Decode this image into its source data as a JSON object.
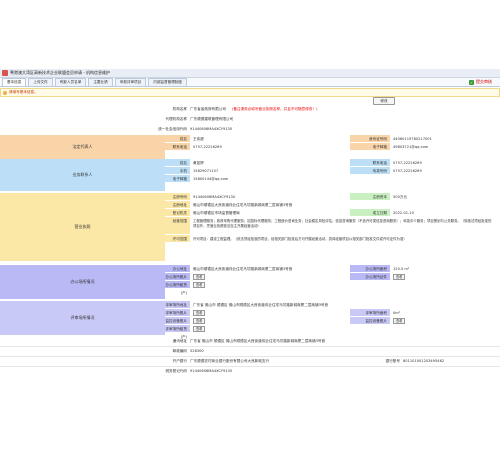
{
  "window": {
    "title": "粤港澳大湾区高新技术企业联盟会员申请 - 机构信息维护"
  },
  "tabs": [
    {
      "label": "基本信息"
    },
    {
      "label": "上传文件"
    },
    {
      "label": "有影人员名单"
    },
    {
      "label": "主要业绩"
    },
    {
      "label": "申报评审项目"
    },
    {
      "label": "内部监督管理制度"
    }
  ],
  "submit": {
    "label": "提交审核"
  },
  "notice": {
    "text": "请填写基本信息。"
  },
  "edit_button": {
    "label": "修改"
  },
  "org": {
    "name_label": "机构名称",
    "name_value": "广东省省政府有限公司",
    "name_note": "(备注请务必填写营业执照名称，并且不可随意修改！)",
    "agent_label": "代理机构名称",
    "agent_value": "广东顺德建筑管理有限公司",
    "credit_label": "统一社会信用代码",
    "credit_value": "91440606MA4XCY9130"
  },
  "legal": {
    "section": "法定代表人",
    "name_label": "姓名",
    "name_value": "王伟超",
    "id_label": "身份证号码",
    "id_value": "44060119780217001",
    "phone_label": "联系电话",
    "phone_value": "0757-22226269",
    "email_label": "电子邮箱",
    "email_value": "49803721@qq.com"
  },
  "contact": {
    "section": "业务联系人",
    "name_label": "姓名",
    "name_value": "黄如婷",
    "tel_label": "联系电话",
    "tel_value": "0757-22226269",
    "mobile_label": "手机",
    "mobile_value": "15829071107",
    "fax_label": "传真号码",
    "fax_value": "0757-22226269",
    "email_label": "电子邮箱",
    "email_value": "15800144@qq.com"
  },
  "license": {
    "section": "营业执照",
    "code_label": "注册号码",
    "code_value": "91440606MA4XCY9130",
    "capital_label": "注册资本",
    "capital_value": "500万元",
    "address_label": "注册地址",
    "address_value": "佛山市顺德区大良街道伟业住宅马坊路新城商厦二层商铺3号首",
    "type_label": "登记机关",
    "type_value": "佛山市顺德区市场监督管理局",
    "date_label": "成立日期",
    "date_value": "2022-01-10",
    "scope_label": "经营范围",
    "scope_value": "工程管理服务；政府采购代理服务；招投标代理服务；工程造价咨询业务；社会稳定风险评估；信息咨询服务（不含许可类信息咨询服务）；科技中介服务；项目策划与公关服务。（除依法须经批准的项目外，凭营业执照依法自主开展经营活动）",
    "permit_label": "许可范围",
    "permit_value": "许可项目：建设工程监理。（依法须经批准的项目，经相关部门批准后方可开展经营活动，具体经营项目以相关部门批准文件或许可证件为准）"
  },
  "office": {
    "section": "办公场所情况",
    "addr_label": "办公地址",
    "addr_value": "佛山市顺德区大良街道伟业住宅马坊路新城商厦二层商铺3号首",
    "area_label": "办公场所面积",
    "area_value": "120.0 m²",
    "prop_label": "办公场所照片",
    "prop_btn": "查看",
    "cert_label": "办公场所证件",
    "cert_btn": "查看",
    "lease_label": "办公场所租赁(产)",
    "lease_btn": "查看"
  },
  "review": {
    "section": "评审场所情况",
    "addr_label": "评审场所地址",
    "addr_value": "广东省 佛山市 顺德区 佛山市顺德区大良街道伟业住宅马坊路新城商厦二层商铺3号首",
    "photo_label": "评审场所照片",
    "photo_btn": "查看",
    "area_label": "评审场所面积",
    "area_value": "0m²",
    "monitor_label": "监控设备照片",
    "monitor_btn": "查看",
    "equip_label": "监控设备照片",
    "equip_btn": "查看",
    "lease_label": "评审场所租赁(产)",
    "lease_btn": "查看"
  },
  "footer": {
    "addr_label": "通讯地址",
    "addr_value": "广东省 佛山市 顺德区 佛山市顺德区大良街道伟业住宅马坊路新城商厦二层商铺3号首",
    "post_label": "邮政编码",
    "post_value": "528300",
    "bank_label": "开户银行",
    "bank_value": "广东顺德农村商业银行股份有限公司大良新城支行",
    "acct_label": "银行账号",
    "acct_value": "801101001203495462",
    "tax_label": "税务登记代码",
    "tax_value": "91440606MA4XCY9130"
  }
}
